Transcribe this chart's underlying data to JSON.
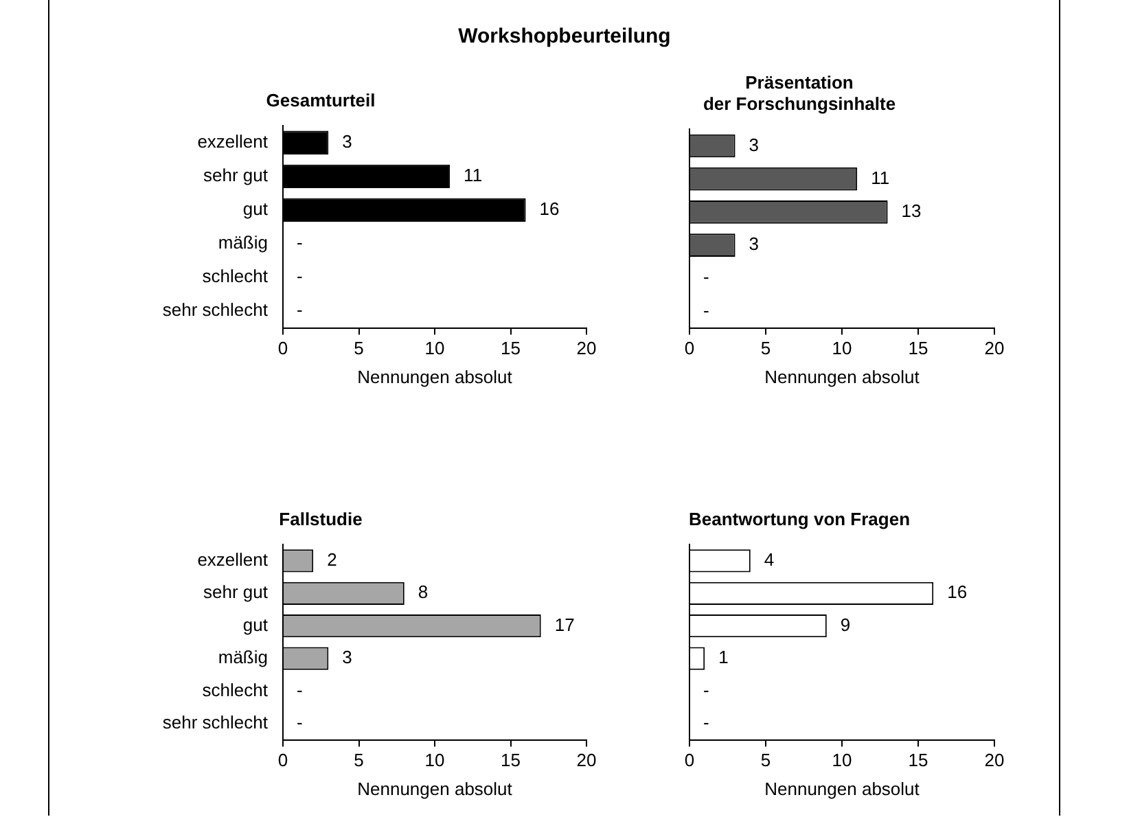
{
  "chart_data": [
    {
      "type": "bar",
      "orientation": "horizontal",
      "title": "Gesamturteil",
      "annotations": [
        "Workshopbeurteilung"
      ],
      "categories": [
        "exzellent",
        "sehr gut",
        "gut",
        "mäßig",
        "schlecht",
        "sehr schlecht"
      ],
      "values": [
        3,
        11,
        16,
        0,
        0,
        0
      ],
      "value_labels": [
        "3",
        "11",
        "16",
        "-",
        "-",
        "-"
      ],
      "color": "#000000",
      "xlim": [
        0,
        20
      ],
      "xticks": [
        0,
        5,
        10,
        15,
        20
      ],
      "xlabel": "Nennungen absolut",
      "grid": false,
      "legend": false
    },
    {
      "type": "bar",
      "orientation": "horizontal",
      "title": "Präsentation\nder Forschungsinhalte",
      "categories": [
        null,
        null,
        null,
        null,
        null,
        null
      ],
      "values": [
        3,
        11,
        13,
        3,
        0,
        0
      ],
      "value_labels": [
        "3",
        "11",
        "13",
        "3",
        "-",
        "-"
      ],
      "color": "#595959",
      "xlim": [
        0,
        20
      ],
      "xticks": [
        0,
        5,
        10,
        15,
        20
      ],
      "xlabel": "Nennungen absolut",
      "grid": false,
      "legend": false,
      "tick_labels": "x"
    },
    {
      "type": "bar",
      "orientation": "horizontal",
      "title": "Fallstudie",
      "categories": [
        "exzellent",
        "sehr gut",
        "gut",
        "mäßig",
        "schlecht",
        "sehr schlecht"
      ],
      "values": [
        2,
        8,
        17,
        3,
        0,
        0
      ],
      "value_labels": [
        "2",
        "8",
        "17",
        "3",
        "-",
        "-"
      ],
      "color": "#a6a6a6",
      "xlim": [
        0,
        20
      ],
      "xticks": [
        0,
        5,
        10,
        15,
        20
      ],
      "xlabel": "Nennungen absolut",
      "grid": false,
      "legend": false
    },
    {
      "type": "bar",
      "orientation": "horizontal",
      "title": "Beantwortung von Fragen",
      "categories": [
        null,
        null,
        null,
        null,
        null,
        null
      ],
      "values": [
        4,
        16,
        9,
        1,
        0,
        0
      ],
      "value_labels": [
        "4",
        "16",
        "9",
        "1",
        "-",
        "-"
      ],
      "color": "#ffffff",
      "xlim": [
        0,
        20
      ],
      "xticks": [
        0,
        5,
        10,
        15,
        20
      ],
      "xlabel": "Nennungen absolut",
      "grid": false,
      "legend": false,
      "tick_labels": "x"
    }
  ]
}
